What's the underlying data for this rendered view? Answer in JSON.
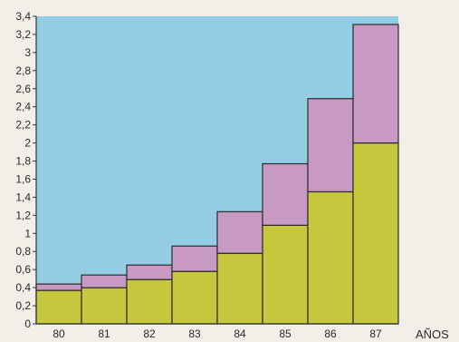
{
  "chart_data": {
    "type": "bar",
    "stacked": true,
    "xlabel": "AÑOS",
    "ylabel": "",
    "ylim": [
      0,
      3.4
    ],
    "y_ticks": [
      "0",
      "0,2",
      "0,4",
      "0,6",
      "0,8",
      "1",
      "1,2",
      "1,4",
      "1,6",
      "1,8",
      "2",
      "2,2",
      "2,4",
      "2,6",
      "2,8",
      "3",
      "3,2",
      "3,4"
    ],
    "categories": [
      "80",
      "81",
      "82",
      "83",
      "84",
      "85",
      "86",
      "87"
    ],
    "series": [
      {
        "values": [
          0.37,
          0.4,
          0.49,
          0.58,
          0.78,
          1.09,
          1.46,
          2.0
        ],
        "color": "#c6c73c"
      },
      {
        "values": [
          0.07,
          0.14,
          0.16,
          0.28,
          0.46,
          0.68,
          1.03,
          1.31
        ],
        "color": "#c89ac3"
      }
    ],
    "background_color": "#92cde3",
    "grid": false
  }
}
